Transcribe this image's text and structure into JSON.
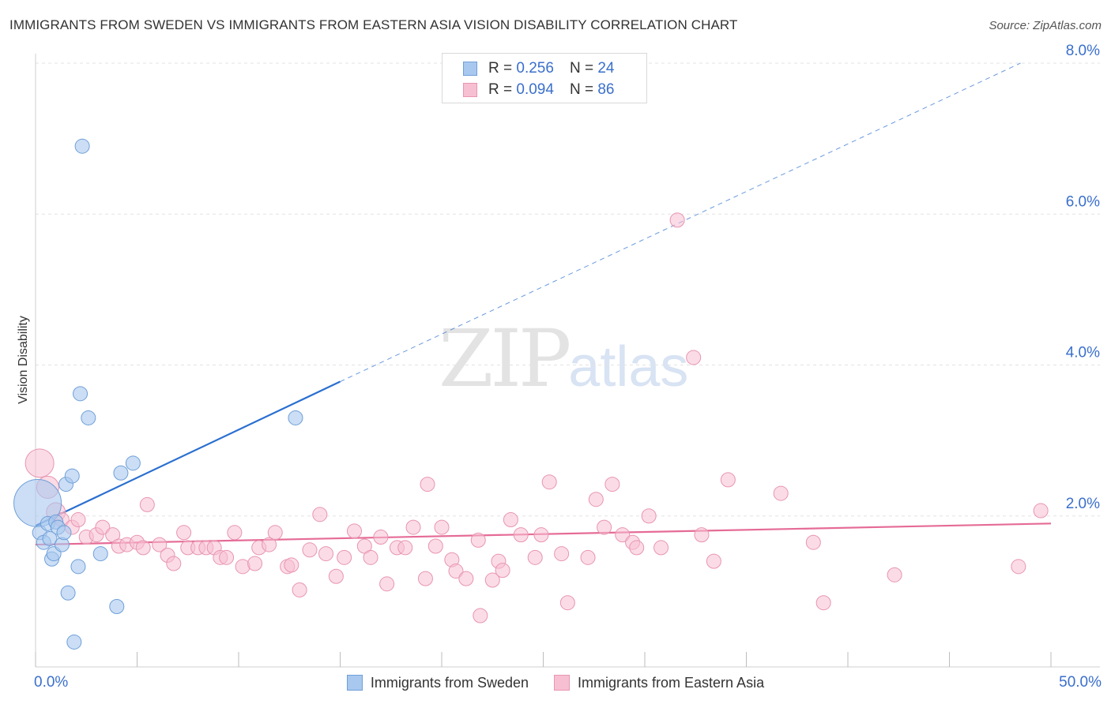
{
  "header": {
    "title": "IMMIGRANTS FROM SWEDEN VS IMMIGRANTS FROM EASTERN ASIA VISION DISABILITY CORRELATION CHART",
    "source": "Source: ZipAtlas.com"
  },
  "watermark": {
    "zip": "ZIP",
    "atlas": "atlas"
  },
  "legend": {
    "sweden": {
      "r_label": "R =",
      "r_value": "0.256",
      "n_label": "N =",
      "n_value": "24"
    },
    "easia": {
      "r_label": "R =",
      "r_value": "0.094",
      "n_label": "N =",
      "n_value": "86"
    }
  },
  "colors": {
    "sweden_fill": "#a9c8ef",
    "sweden_stroke": "#6f9fd8",
    "sweden_line": "#2a6fd0",
    "easia_fill": "#f7c0d2",
    "easia_stroke": "#e895b1",
    "easia_line": "#e56b96",
    "tick_label": "#3a6fcc",
    "grid": "#e3e3e3"
  },
  "chart_data": {
    "type": "scatter",
    "title": "IMMIGRANTS FROM SWEDEN VS IMMIGRANTS FROM EASTERN ASIA VISION DISABILITY CORRELATION CHART",
    "xlabel": "",
    "ylabel": "Vision Disability",
    "xlim": [
      0,
      50
    ],
    "ylim": [
      0,
      8.0
    ],
    "x_tick_labels": [
      "0.0%",
      "50.0%"
    ],
    "y_ticks": [
      2.0,
      4.0,
      6.0,
      8.0
    ],
    "y_tick_labels": [
      "2.0%",
      "4.0%",
      "6.0%",
      "8.0%"
    ],
    "legend_position": "top-center",
    "series": [
      {
        "name": "Immigrants from Sweden",
        "r": 0.256,
        "n": 24,
        "trend": {
          "x": [
            0,
            15
          ],
          "y": [
            1.87,
            3.78
          ],
          "dashed_extension_to": [
            48.5,
            8.0
          ]
        },
        "points": [
          {
            "x": 0.1,
            "y": 2.17,
            "s": 30
          },
          {
            "x": 0.2,
            "y": 1.78,
            "s": 9
          },
          {
            "x": 0.4,
            "y": 1.65,
            "s": 9
          },
          {
            "x": 0.6,
            "y": 1.9,
            "s": 9
          },
          {
            "x": 0.7,
            "y": 1.7,
            "s": 9
          },
          {
            "x": 0.8,
            "y": 1.43,
            "s": 9
          },
          {
            "x": 0.9,
            "y": 1.5,
            "s": 9
          },
          {
            "x": 1.0,
            "y": 1.92,
            "s": 9
          },
          {
            "x": 1.1,
            "y": 1.85,
            "s": 9
          },
          {
            "x": 1.3,
            "y": 1.62,
            "s": 9
          },
          {
            "x": 1.4,
            "y": 1.78,
            "s": 9
          },
          {
            "x": 1.5,
            "y": 2.42,
            "s": 9
          },
          {
            "x": 1.6,
            "y": 0.98,
            "s": 9
          },
          {
            "x": 1.8,
            "y": 2.53,
            "s": 9
          },
          {
            "x": 1.9,
            "y": 0.33,
            "s": 9
          },
          {
            "x": 2.1,
            "y": 1.33,
            "s": 9
          },
          {
            "x": 2.2,
            "y": 3.62,
            "s": 9
          },
          {
            "x": 2.3,
            "y": 6.9,
            "s": 9
          },
          {
            "x": 2.6,
            "y": 3.3,
            "s": 9
          },
          {
            "x": 3.2,
            "y": 1.5,
            "s": 9
          },
          {
            "x": 4.0,
            "y": 0.8,
            "s": 9
          },
          {
            "x": 4.2,
            "y": 2.57,
            "s": 9
          },
          {
            "x": 4.8,
            "y": 2.7,
            "s": 9
          },
          {
            "x": 12.8,
            "y": 3.3,
            "s": 9
          }
        ]
      },
      {
        "name": "Immigrants from Eastern Asia",
        "r": 0.094,
        "n": 86,
        "trend": {
          "x": [
            0,
            50
          ],
          "y": [
            1.62,
            1.9
          ]
        },
        "points": [
          {
            "x": 0.2,
            "y": 2.7,
            "s": 18
          },
          {
            "x": 0.6,
            "y": 2.38,
            "s": 14
          },
          {
            "x": 1.0,
            "y": 2.05,
            "s": 12
          },
          {
            "x": 1.3,
            "y": 1.95,
            "s": 9
          },
          {
            "x": 1.8,
            "y": 1.85,
            "s": 9
          },
          {
            "x": 2.1,
            "y": 1.95,
            "s": 9
          },
          {
            "x": 2.5,
            "y": 1.72,
            "s": 9
          },
          {
            "x": 3.0,
            "y": 1.75,
            "s": 9
          },
          {
            "x": 3.3,
            "y": 1.85,
            "s": 9
          },
          {
            "x": 3.8,
            "y": 1.75,
            "s": 9
          },
          {
            "x": 4.1,
            "y": 1.6,
            "s": 9
          },
          {
            "x": 4.5,
            "y": 1.62,
            "s": 9
          },
          {
            "x": 5.0,
            "y": 1.65,
            "s": 9
          },
          {
            "x": 5.3,
            "y": 1.58,
            "s": 9
          },
          {
            "x": 5.5,
            "y": 2.15,
            "s": 9
          },
          {
            "x": 6.1,
            "y": 1.62,
            "s": 9
          },
          {
            "x": 6.5,
            "y": 1.48,
            "s": 9
          },
          {
            "x": 6.8,
            "y": 1.37,
            "s": 9
          },
          {
            "x": 7.3,
            "y": 1.78,
            "s": 9
          },
          {
            "x": 7.5,
            "y": 1.58,
            "s": 9
          },
          {
            "x": 8.0,
            "y": 1.58,
            "s": 9
          },
          {
            "x": 8.4,
            "y": 1.58,
            "s": 9
          },
          {
            "x": 8.8,
            "y": 1.58,
            "s": 9
          },
          {
            "x": 9.1,
            "y": 1.45,
            "s": 9
          },
          {
            "x": 9.4,
            "y": 1.45,
            "s": 9
          },
          {
            "x": 9.8,
            "y": 1.78,
            "s": 9
          },
          {
            "x": 10.2,
            "y": 1.33,
            "s": 9
          },
          {
            "x": 10.8,
            "y": 1.37,
            "s": 9
          },
          {
            "x": 11.0,
            "y": 1.58,
            "s": 9
          },
          {
            "x": 11.5,
            "y": 1.62,
            "s": 9
          },
          {
            "x": 11.8,
            "y": 1.78,
            "s": 9
          },
          {
            "x": 12.4,
            "y": 1.33,
            "s": 9
          },
          {
            "x": 12.6,
            "y": 1.35,
            "s": 9
          },
          {
            "x": 13.0,
            "y": 1.02,
            "s": 9
          },
          {
            "x": 13.5,
            "y": 1.55,
            "s": 9
          },
          {
            "x": 14.0,
            "y": 2.02,
            "s": 9
          },
          {
            "x": 14.3,
            "y": 1.5,
            "s": 9
          },
          {
            "x": 14.8,
            "y": 1.2,
            "s": 9
          },
          {
            "x": 15.2,
            "y": 1.45,
            "s": 9
          },
          {
            "x": 15.7,
            "y": 1.8,
            "s": 9
          },
          {
            "x": 16.2,
            "y": 1.6,
            "s": 9
          },
          {
            "x": 16.5,
            "y": 1.45,
            "s": 9
          },
          {
            "x": 17.0,
            "y": 1.72,
            "s": 9
          },
          {
            "x": 17.3,
            "y": 1.1,
            "s": 9
          },
          {
            "x": 17.8,
            "y": 1.58,
            "s": 9
          },
          {
            "x": 18.2,
            "y": 1.58,
            "s": 9
          },
          {
            "x": 18.6,
            "y": 1.85,
            "s": 9
          },
          {
            "x": 19.2,
            "y": 1.17,
            "s": 9
          },
          {
            "x": 19.3,
            "y": 2.42,
            "s": 9
          },
          {
            "x": 19.7,
            "y": 1.6,
            "s": 9
          },
          {
            "x": 20.0,
            "y": 1.85,
            "s": 9
          },
          {
            "x": 20.5,
            "y": 1.42,
            "s": 9
          },
          {
            "x": 20.7,
            "y": 1.27,
            "s": 9
          },
          {
            "x": 21.2,
            "y": 1.17,
            "s": 9
          },
          {
            "x": 21.8,
            "y": 1.68,
            "s": 9
          },
          {
            "x": 21.9,
            "y": 0.68,
            "s": 9
          },
          {
            "x": 22.5,
            "y": 1.15,
            "s": 9
          },
          {
            "x": 22.8,
            "y": 1.4,
            "s": 9
          },
          {
            "x": 23.0,
            "y": 1.28,
            "s": 9
          },
          {
            "x": 23.4,
            "y": 1.95,
            "s": 9
          },
          {
            "x": 23.9,
            "y": 1.75,
            "s": 9
          },
          {
            "x": 24.6,
            "y": 1.45,
            "s": 9
          },
          {
            "x": 24.9,
            "y": 1.75,
            "s": 9
          },
          {
            "x": 25.3,
            "y": 2.45,
            "s": 9
          },
          {
            "x": 25.9,
            "y": 1.5,
            "s": 9
          },
          {
            "x": 26.2,
            "y": 0.85,
            "s": 9
          },
          {
            "x": 27.2,
            "y": 1.45,
            "s": 9
          },
          {
            "x": 27.6,
            "y": 2.22,
            "s": 9
          },
          {
            "x": 28.0,
            "y": 1.85,
            "s": 9
          },
          {
            "x": 28.4,
            "y": 2.42,
            "s": 9
          },
          {
            "x": 28.9,
            "y": 1.75,
            "s": 9
          },
          {
            "x": 29.4,
            "y": 1.65,
            "s": 9
          },
          {
            "x": 29.6,
            "y": 1.58,
            "s": 9
          },
          {
            "x": 30.2,
            "y": 2.0,
            "s": 9
          },
          {
            "x": 30.8,
            "y": 1.58,
            "s": 9
          },
          {
            "x": 31.6,
            "y": 5.92,
            "s": 9
          },
          {
            "x": 32.4,
            "y": 4.1,
            "s": 9
          },
          {
            "x": 32.8,
            "y": 1.75,
            "s": 9
          },
          {
            "x": 33.4,
            "y": 1.4,
            "s": 9
          },
          {
            "x": 34.1,
            "y": 2.48,
            "s": 9
          },
          {
            "x": 36.7,
            "y": 2.3,
            "s": 9
          },
          {
            "x": 38.3,
            "y": 1.65,
            "s": 9
          },
          {
            "x": 38.8,
            "y": 0.85,
            "s": 9
          },
          {
            "x": 42.3,
            "y": 1.22,
            "s": 9
          },
          {
            "x": 48.4,
            "y": 1.33,
            "s": 9
          },
          {
            "x": 49.5,
            "y": 2.07,
            "s": 9
          }
        ]
      }
    ]
  },
  "bottom_legend": {
    "sweden_label": "Immigrants from Sweden",
    "easia_label": "Immigrants from Eastern Asia"
  }
}
